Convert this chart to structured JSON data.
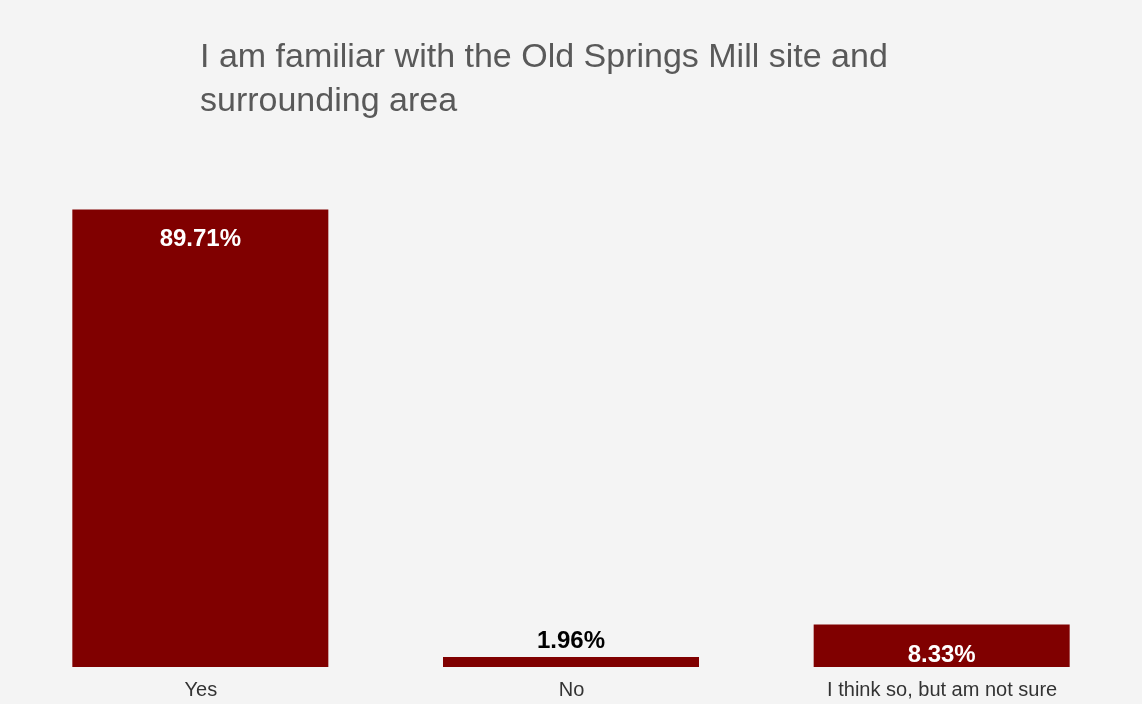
{
  "chart_data": {
    "type": "bar",
    "title": "I am familiar with the Old Springs Mill site and surrounding area",
    "categories": [
      "Yes",
      "No",
      "I think so, but am not sure"
    ],
    "series": [
      {
        "color": "#800000",
        "values": [
          89.71,
          1.96,
          8.33
        ],
        "value_labels": [
          "89.71%",
          "1.96%",
          "8.33%"
        ]
      }
    ],
    "data_labels": false
  }
}
